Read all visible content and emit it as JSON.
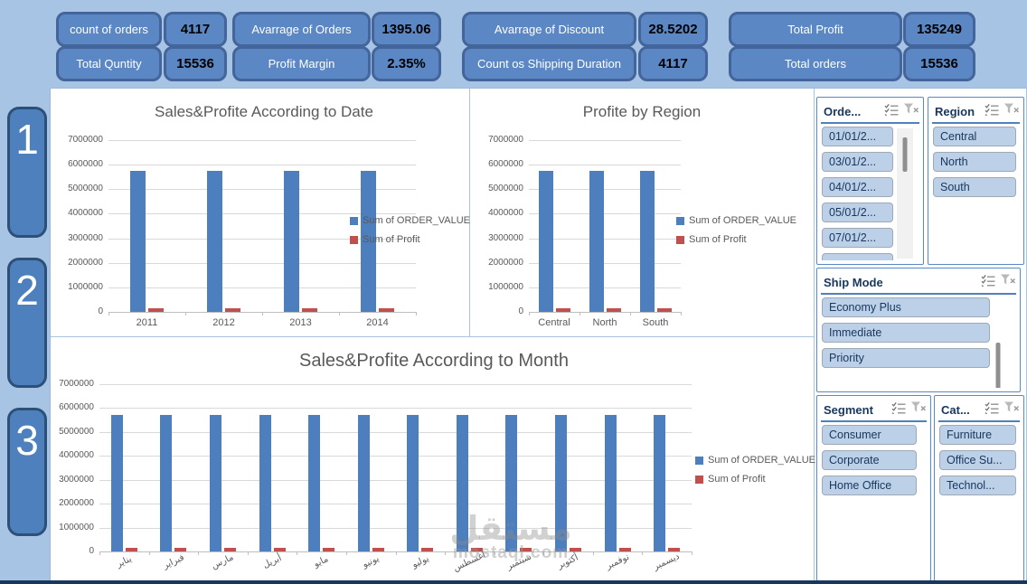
{
  "kpi_groups": [
    {
      "rows": [
        {
          "label": "count of orders",
          "value": "4117"
        },
        {
          "label": "Total Quntity",
          "value": "15536"
        }
      ]
    },
    {
      "rows": [
        {
          "label": "Avarrage of Orders",
          "value": "1395.06"
        },
        {
          "label": "Profit Margin",
          "value": "2.35%"
        }
      ]
    },
    {
      "rows": [
        {
          "label": "Avarrage of Discount",
          "value": "28.5202"
        },
        {
          "label": "Count os Shipping Duration",
          "value": "4117"
        }
      ]
    },
    {
      "rows": [
        {
          "label": "Total Profit",
          "value": "135249"
        },
        {
          "label": "Total orders",
          "value": "15536"
        }
      ]
    }
  ],
  "side_buttons": [
    {
      "label": "1"
    },
    {
      "label": "2"
    },
    {
      "label": "3"
    }
  ],
  "chart_data": [
    {
      "id": "date_chart",
      "type": "bar",
      "title": "Sales&Profite According to Date",
      "categories": [
        "2011",
        "2012",
        "2013",
        "2014"
      ],
      "series": [
        {
          "name": "Sum of ORDER_VALUE",
          "color": "#4d7ebd",
          "values": [
            5730000,
            5730000,
            5730000,
            5730000
          ]
        },
        {
          "name": "Sum of Profit",
          "color": "#c0504d",
          "values": [
            150000,
            150000,
            150000,
            150000
          ]
        }
      ],
      "ylim": [
        0,
        7000000
      ],
      "yticks": [
        "7000000",
        "6000000",
        "5000000",
        "4000000",
        "3000000",
        "2000000",
        "1000000",
        "0"
      ],
      "legend_position": "right",
      "grid": true
    },
    {
      "id": "region_chart",
      "type": "bar",
      "title": "Profite by Region",
      "categories": [
        "Central",
        "North",
        "South"
      ],
      "series": [
        {
          "name": "Sum of ORDER_VALUE",
          "color": "#4d7ebd",
          "values": [
            5740000,
            5740000,
            5740000
          ]
        },
        {
          "name": "Sum of Profit",
          "color": "#c0504d",
          "values": [
            150000,
            150000,
            150000
          ]
        }
      ],
      "ylim": [
        0,
        7000000
      ],
      "yticks": [
        "7000000",
        "6000000",
        "5000000",
        "4000000",
        "3000000",
        "2000000",
        "1000000",
        "0"
      ],
      "legend_position": "right",
      "grid": true
    },
    {
      "id": "month_chart",
      "type": "bar",
      "title": "Sales&Profite According to Month",
      "categories": [
        "يناير",
        "فبراير",
        "مارس",
        "أبريل",
        "مايو",
        "يونيو",
        "يوليو",
        "أغسطس",
        "سبتمبر",
        "أكتوبر",
        "نوفمبر",
        "ديسمبر"
      ],
      "categories_arabic": true,
      "series": [
        {
          "name": "Sum of ORDER_VALUE",
          "color": "#4d7ebd",
          "values": [
            5730000,
            5730000,
            5730000,
            5730000,
            5730000,
            5730000,
            5730000,
            5730000,
            5730000,
            5730000,
            5730000,
            5730000
          ]
        },
        {
          "name": "Sum of Profit",
          "color": "#c0504d",
          "values": [
            150000,
            150000,
            150000,
            150000,
            150000,
            150000,
            150000,
            150000,
            150000,
            170000,
            150000,
            150000
          ]
        }
      ],
      "ylim": [
        0,
        7000000
      ],
      "yticks": [
        "7000000",
        "6000000",
        "5000000",
        "4000000",
        "3000000",
        "2000000",
        "1000000",
        "0"
      ],
      "legend_position": "right",
      "grid": true
    }
  ],
  "slicers": [
    {
      "title": "Orde...",
      "items": [
        "01/01/2...",
        "03/01/2...",
        "04/01/2...",
        "05/01/2...",
        "07/01/2...",
        ""
      ]
    },
    {
      "title": "Region",
      "items": [
        "Central",
        "North",
        "South"
      ]
    },
    {
      "title": "Ship Mode",
      "items": [
        "Economy Plus",
        "Immediate",
        "Priority"
      ]
    },
    {
      "title": "Segment",
      "items": [
        "Consumer",
        "Corporate",
        "Home Office"
      ]
    },
    {
      "title": "Cat...",
      "items": [
        "Furniture",
        "Office Su...",
        "Technol..."
      ]
    }
  ],
  "watermark": {
    "brand": "مستقل",
    "domain": "mostaql.com"
  }
}
